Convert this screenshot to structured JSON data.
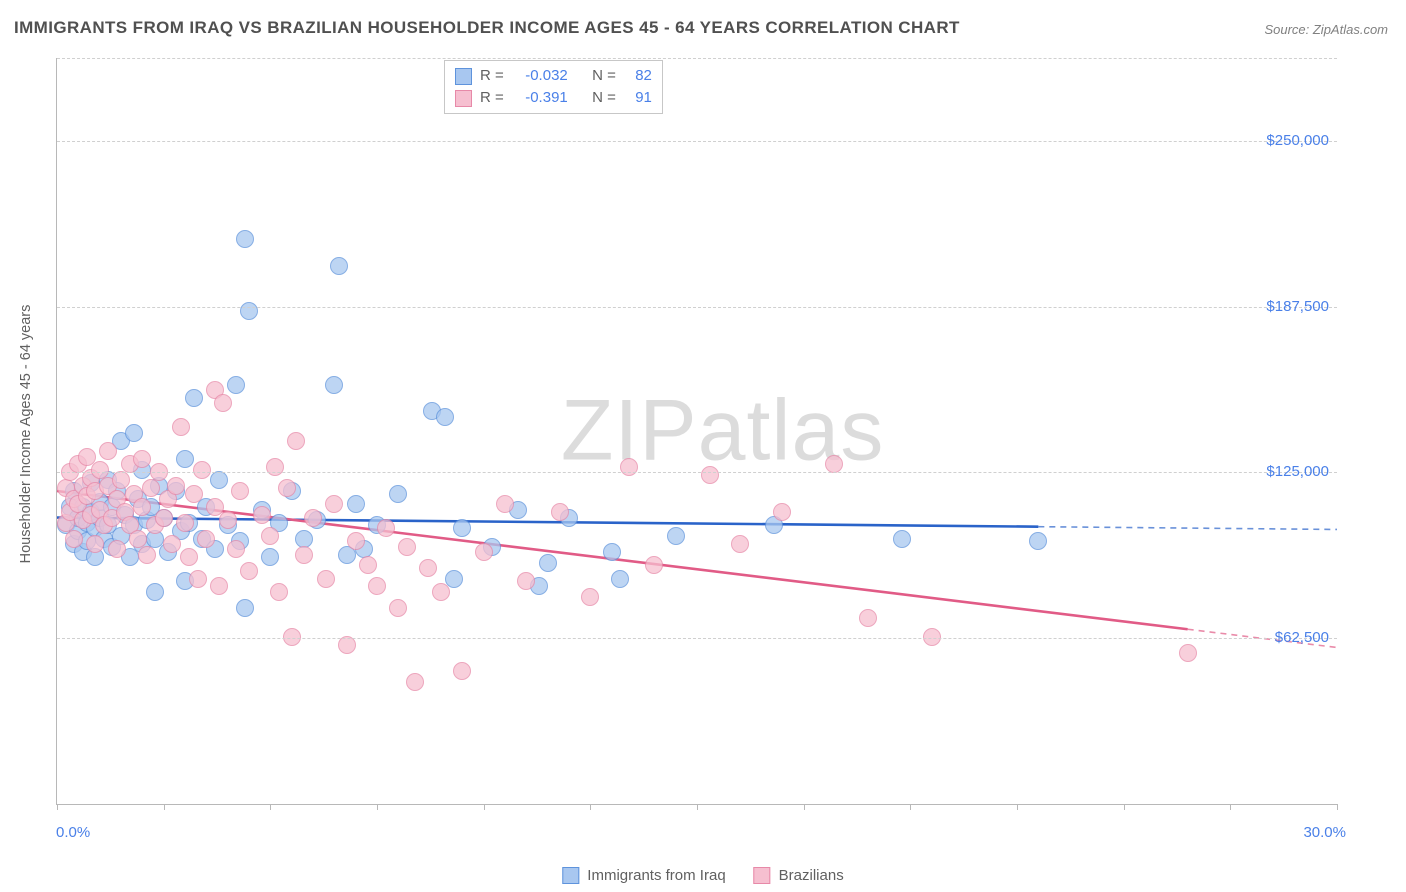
{
  "title": "IMMIGRANTS FROM IRAQ VS BRAZILIAN HOUSEHOLDER INCOME AGES 45 - 64 YEARS CORRELATION CHART",
  "source": "Source: ZipAtlas.com",
  "ylabel": "Householder Income Ages 45 - 64 years",
  "watermark_a": "ZIP",
  "watermark_b": "atlas",
  "chart": {
    "type": "scatter",
    "background_color": "#ffffff",
    "grid_color": "#d0d0d0",
    "axis_color": "#b8b8b8",
    "tick_color": "#4a80e8",
    "marker_radius": 9,
    "marker_style": "circle",
    "marker_fill_opacity": 0.35,
    "marker_stroke_width": 1.5,
    "trendline_width": 2.6,
    "trendline_dash_extension": true,
    "xlim": [
      0,
      30
    ],
    "ylim": [
      0,
      281250
    ],
    "xtick_positions": [
      0,
      2.5,
      5,
      7.5,
      10,
      12.5,
      15,
      17.5,
      20,
      22.5,
      25,
      27.5,
      30
    ],
    "xtick_labels": {
      "0": "0.0%",
      "30": "30.0%"
    },
    "ytick_positions": [
      62500,
      125000,
      187500,
      250000
    ],
    "ytick_labels": {
      "62500": "$62,500",
      "125000": "$125,000",
      "187500": "$187,500",
      "250000": "$250,000"
    },
    "title_fontsize": 17,
    "label_fontsize": 14.5,
    "tick_fontsize": 15
  },
  "series": [
    {
      "name": "Immigrants from Iraq",
      "color_fill": "#a8c7f0",
      "color_stroke": "#5e93dc",
      "line_color": "#2a63c9",
      "R": "-0.032",
      "N": "82",
      "trend": {
        "y0": 108000,
        "y30": 103500
      },
      "points": [
        [
          0.2,
          105000
        ],
        [
          0.3,
          112000
        ],
        [
          0.4,
          98000
        ],
        [
          0.4,
          118000
        ],
        [
          0.5,
          103000
        ],
        [
          0.5,
          108000
        ],
        [
          0.6,
          95000
        ],
        [
          0.6,
          112000
        ],
        [
          0.7,
          106000
        ],
        [
          0.7,
          99000
        ],
        [
          0.8,
          110000
        ],
        [
          0.8,
          121000
        ],
        [
          0.9,
          104000
        ],
        [
          0.9,
          93000
        ],
        [
          1.0,
          108000
        ],
        [
          1.0,
          114000
        ],
        [
          1.1,
          100000
        ],
        [
          1.2,
          122000
        ],
        [
          1.2,
          105000
        ],
        [
          1.3,
          97000
        ],
        [
          1.3,
          112000
        ],
        [
          1.4,
          118000
        ],
        [
          1.5,
          101000
        ],
        [
          1.5,
          137000
        ],
        [
          1.6,
          109000
        ],
        [
          1.7,
          93000
        ],
        [
          1.8,
          140000
        ],
        [
          1.8,
          105000
        ],
        [
          1.9,
          115000
        ],
        [
          2.0,
          98000
        ],
        [
          2.0,
          126000
        ],
        [
          2.1,
          107000
        ],
        [
          2.2,
          112000
        ],
        [
          2.3,
          100000
        ],
        [
          2.3,
          80000
        ],
        [
          2.4,
          120000
        ],
        [
          2.5,
          108000
        ],
        [
          2.6,
          95000
        ],
        [
          2.8,
          118000
        ],
        [
          2.9,
          103000
        ],
        [
          3.0,
          130000
        ],
        [
          3.0,
          84000
        ],
        [
          3.1,
          106000
        ],
        [
          3.2,
          153000
        ],
        [
          3.4,
          100000
        ],
        [
          3.5,
          112000
        ],
        [
          3.7,
          96000
        ],
        [
          3.8,
          122000
        ],
        [
          4.0,
          105000
        ],
        [
          4.2,
          158000
        ],
        [
          4.3,
          99000
        ],
        [
          4.4,
          74000
        ],
        [
          4.4,
          213000
        ],
        [
          4.5,
          186000
        ],
        [
          4.8,
          111000
        ],
        [
          5.0,
          93000
        ],
        [
          5.2,
          106000
        ],
        [
          5.5,
          118000
        ],
        [
          5.8,
          100000
        ],
        [
          6.1,
          107000
        ],
        [
          6.5,
          158000
        ],
        [
          6.6,
          203000
        ],
        [
          6.8,
          94000
        ],
        [
          7.0,
          113000
        ],
        [
          7.2,
          96000
        ],
        [
          7.5,
          105000
        ],
        [
          8.0,
          117000
        ],
        [
          8.8,
          148000
        ],
        [
          9.1,
          146000
        ],
        [
          9.3,
          85000
        ],
        [
          9.5,
          104000
        ],
        [
          10.2,
          97000
        ],
        [
          10.8,
          111000
        ],
        [
          11.3,
          82000
        ],
        [
          11.5,
          91000
        ],
        [
          12.0,
          108000
        ],
        [
          13.0,
          95000
        ],
        [
          13.2,
          85000
        ],
        [
          14.5,
          101000
        ],
        [
          16.8,
          105000
        ],
        [
          19.8,
          100000
        ],
        [
          23.0,
          99000
        ]
      ]
    },
    {
      "name": "Brazilians",
      "color_fill": "#f6bfd0",
      "color_stroke": "#e789a8",
      "line_color": "#e15b86",
      "R": "-0.391",
      "N": "91",
      "trend": {
        "y0": 118000,
        "y30": 59000
      },
      "points": [
        [
          0.2,
          119000
        ],
        [
          0.2,
          106000
        ],
        [
          0.3,
          125000
        ],
        [
          0.3,
          110000
        ],
        [
          0.4,
          115000
        ],
        [
          0.4,
          100000
        ],
        [
          0.5,
          128000
        ],
        [
          0.5,
          113000
        ],
        [
          0.6,
          120000
        ],
        [
          0.6,
          107000
        ],
        [
          0.7,
          131000
        ],
        [
          0.7,
          116000
        ],
        [
          0.8,
          109000
        ],
        [
          0.8,
          123000
        ],
        [
          0.9,
          118000
        ],
        [
          0.9,
          98000
        ],
        [
          1.0,
          111000
        ],
        [
          1.0,
          126000
        ],
        [
          1.1,
          105000
        ],
        [
          1.2,
          120000
        ],
        [
          1.2,
          133000
        ],
        [
          1.3,
          108000
        ],
        [
          1.4,
          115000
        ],
        [
          1.4,
          96000
        ],
        [
          1.5,
          122000
        ],
        [
          1.6,
          110000
        ],
        [
          1.7,
          128000
        ],
        [
          1.7,
          105000
        ],
        [
          1.8,
          117000
        ],
        [
          1.9,
          100000
        ],
        [
          2.0,
          130000
        ],
        [
          2.0,
          112000
        ],
        [
          2.1,
          94000
        ],
        [
          2.2,
          119000
        ],
        [
          2.3,
          105000
        ],
        [
          2.4,
          125000
        ],
        [
          2.5,
          108000
        ],
        [
          2.6,
          115000
        ],
        [
          2.7,
          98000
        ],
        [
          2.8,
          120000
        ],
        [
          2.9,
          142000
        ],
        [
          3.0,
          106000
        ],
        [
          3.1,
          93000
        ],
        [
          3.2,
          117000
        ],
        [
          3.3,
          85000
        ],
        [
          3.4,
          126000
        ],
        [
          3.5,
          100000
        ],
        [
          3.7,
          112000
        ],
        [
          3.7,
          156000
        ],
        [
          3.8,
          82000
        ],
        [
          3.9,
          151000
        ],
        [
          4.0,
          107000
        ],
        [
          4.2,
          96000
        ],
        [
          4.3,
          118000
        ],
        [
          4.5,
          88000
        ],
        [
          4.8,
          109000
        ],
        [
          5.0,
          101000
        ],
        [
          5.1,
          127000
        ],
        [
          5.2,
          80000
        ],
        [
          5.4,
          119000
        ],
        [
          5.5,
          63000
        ],
        [
          5.6,
          137000
        ],
        [
          5.8,
          94000
        ],
        [
          6.0,
          108000
        ],
        [
          6.3,
          85000
        ],
        [
          6.5,
          113000
        ],
        [
          6.8,
          60000
        ],
        [
          7.0,
          99000
        ],
        [
          7.3,
          90000
        ],
        [
          7.5,
          82000
        ],
        [
          7.7,
          104000
        ],
        [
          8.0,
          74000
        ],
        [
          8.2,
          97000
        ],
        [
          8.4,
          46000
        ],
        [
          8.7,
          89000
        ],
        [
          9.0,
          80000
        ],
        [
          9.5,
          50000
        ],
        [
          10.0,
          95000
        ],
        [
          10.5,
          113000
        ],
        [
          11.0,
          84000
        ],
        [
          11.8,
          110000
        ],
        [
          12.5,
          78000
        ],
        [
          13.4,
          127000
        ],
        [
          14.0,
          90000
        ],
        [
          15.3,
          124000
        ],
        [
          16.0,
          98000
        ],
        [
          17.0,
          110000
        ],
        [
          18.2,
          128000
        ],
        [
          19.0,
          70000
        ],
        [
          20.5,
          63000
        ],
        [
          26.5,
          57000
        ]
      ]
    }
  ],
  "legend_bottom": [
    {
      "label": "Immigrants from Iraq",
      "fill": "#a8c7f0",
      "stroke": "#5e93dc"
    },
    {
      "label": "Brazilians",
      "fill": "#f6bfd0",
      "stroke": "#e789a8"
    }
  ]
}
